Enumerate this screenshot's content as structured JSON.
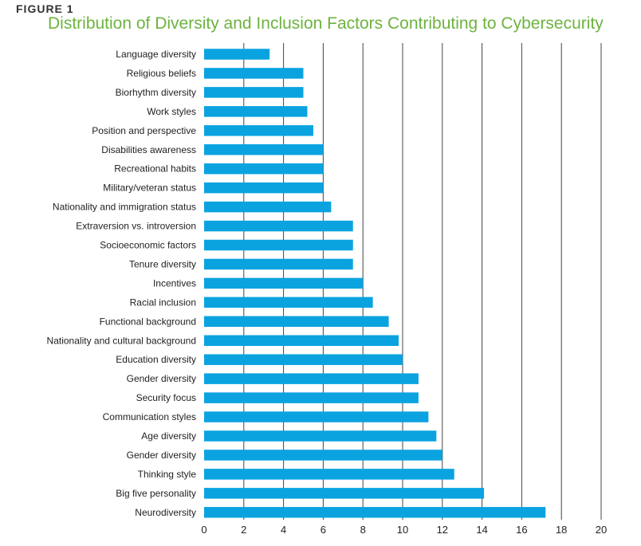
{
  "figure": {
    "label": "FIGURE 1",
    "title": "Distribution of Diversity and Inclusion Factors Contributing to Cybersecurity"
  },
  "colors": {
    "bar": "#0aa3e0",
    "gridline": "#444444",
    "title": "#6db33f"
  },
  "chart_data": {
    "type": "bar",
    "orientation": "horizontal",
    "title": "Distribution of Diversity and Inclusion Factors Contributing to Cybersecurity",
    "xlabel": "",
    "ylabel": "",
    "xlim": [
      0,
      20
    ],
    "xticks": [
      0,
      2,
      4,
      6,
      8,
      10,
      12,
      14,
      16,
      18,
      20
    ],
    "grid": true,
    "categories": [
      "Language diversity",
      "Religious beliefs",
      "Biorhythm diversity",
      "Work styles",
      "Position and perspective",
      "Disabilities awareness",
      "Recreational habits",
      "Military/veteran status",
      "Nationality and immigration status",
      "Extraversion vs. introversion",
      "Socioeconomic factors",
      "Tenure diversity",
      "Incentives",
      "Racial inclusion ",
      "Functional background",
      "Nationality and cultural background",
      "Education diversity",
      "Gender diversity",
      "Security focus",
      "Communication styles",
      "Age diversity",
      "Gender diversity",
      "Thinking style",
      "Big five personality",
      "Neurodiversity"
    ],
    "values": [
      3.3,
      5.0,
      5.0,
      5.2,
      5.5,
      6.0,
      6.0,
      6.0,
      6.4,
      7.5,
      7.5,
      7.5,
      8.0,
      8.5,
      9.3,
      9.8,
      10.0,
      10.8,
      10.8,
      11.3,
      11.7,
      12.0,
      12.6,
      14.1,
      17.2
    ]
  }
}
